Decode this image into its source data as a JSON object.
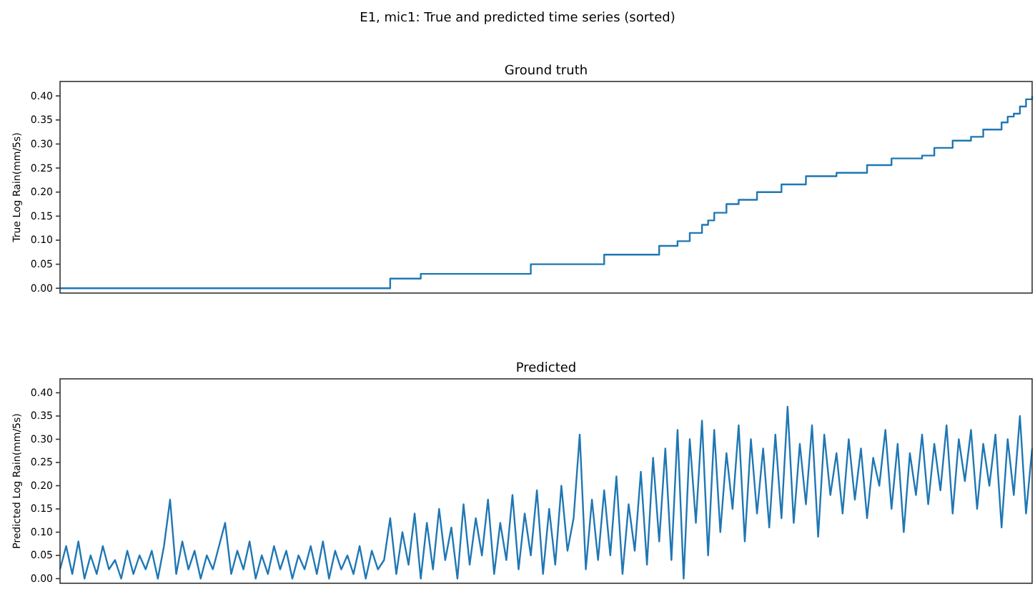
{
  "chart_data": [
    {
      "type": "step",
      "title": "Ground truth",
      "annotations": [
        "E1, mic1: True and predicted time series (sorted)"
      ],
      "ylabel": "True Log Rain(mm/5s)",
      "ylim": [
        -0.01,
        0.43
      ],
      "yticks": [
        {
          "value": 0,
          "label": "0.00"
        },
        {
          "value": 0.05,
          "label": "0.05"
        },
        {
          "value": 0.1,
          "label": "0.10"
        },
        {
          "value": 0.15,
          "label": "0.15"
        },
        {
          "value": 0.2,
          "label": "0.20"
        },
        {
          "value": 0.25,
          "label": "0.25"
        },
        {
          "value": 0.3,
          "label": "0.30"
        },
        {
          "value": 0.35,
          "label": "0.35"
        },
        {
          "value": 0.4,
          "label": "0.40"
        }
      ],
      "grid": false,
      "categories": [
        null,
        null,
        null,
        null,
        null,
        null,
        null,
        null,
        null,
        null,
        null,
        null,
        null,
        null,
        null,
        null,
        null,
        null,
        null,
        null,
        null,
        null,
        null,
        null,
        null,
        null,
        null,
        null,
        null,
        null,
        null,
        null,
        null,
        null,
        null,
        null,
        null,
        null,
        null,
        null,
        null,
        null,
        null,
        null,
        null,
        null,
        null,
        null,
        null,
        null,
        null,
        null,
        null,
        null,
        null,
        null,
        null,
        null,
        null,
        null,
        null,
        null,
        null,
        null,
        null,
        null,
        null,
        null,
        null,
        null,
        null,
        null,
        null,
        null,
        null,
        null,
        null,
        null,
        null,
        null,
        null,
        null,
        null,
        null,
        null,
        null,
        null,
        null,
        null,
        null,
        null,
        null,
        null,
        null,
        null,
        null,
        null,
        null,
        null,
        null,
        null,
        null,
        null,
        null,
        null,
        null,
        null,
        null,
        null,
        null,
        null,
        null,
        null,
        null,
        null,
        null,
        null,
        null,
        null,
        null,
        null,
        null,
        null,
        null,
        null,
        null,
        null,
        null,
        null,
        null,
        null,
        null,
        null,
        null,
        null,
        null,
        null,
        null,
        null,
        null,
        null,
        null,
        null,
        null,
        null,
        null,
        null,
        null,
        null,
        null,
        null,
        null,
        null,
        null,
        null,
        null,
        null,
        null,
        null,
        null
      ],
      "series": [
        {
          "color": "#1f77b4",
          "values": [
            0,
            0,
            0,
            0,
            0,
            0,
            0,
            0,
            0,
            0,
            0,
            0,
            0,
            0,
            0,
            0,
            0,
            0,
            0,
            0,
            0,
            0,
            0,
            0,
            0,
            0,
            0,
            0,
            0,
            0,
            0,
            0,
            0,
            0,
            0,
            0,
            0,
            0,
            0,
            0,
            0,
            0,
            0,
            0,
            0,
            0,
            0,
            0,
            0,
            0,
            0,
            0,
            0,
            0,
            0.02,
            0.02,
            0.02,
            0.02,
            0.02,
            0.03,
            0.03,
            0.03,
            0.03,
            0.03,
            0.03,
            0.03,
            0.03,
            0.03,
            0.03,
            0.03,
            0.03,
            0.03,
            0.03,
            0.03,
            0.03,
            0.03,
            0.03,
            0.05,
            0.05,
            0.05,
            0.05,
            0.05,
            0.05,
            0.05,
            0.05,
            0.05,
            0.05,
            0.05,
            0.05,
            0.07,
            0.07,
            0.07,
            0.07,
            0.07,
            0.07,
            0.07,
            0.07,
            0.07,
            0.088,
            0.088,
            0.088,
            0.098,
            0.098,
            0.115,
            0.115,
            0.132,
            0.141,
            0.157,
            0.157,
            0.175,
            0.175,
            0.184,
            0.184,
            0.184,
            0.2,
            0.2,
            0.2,
            0.2,
            0.216,
            0.216,
            0.216,
            0.216,
            0.233,
            0.233,
            0.233,
            0.233,
            0.233,
            0.24,
            0.24,
            0.24,
            0.24,
            0.24,
            0.256,
            0.256,
            0.256,
            0.256,
            0.27,
            0.27,
            0.27,
            0.27,
            0.27,
            0.276,
            0.276,
            0.292,
            0.292,
            0.292,
            0.307,
            0.307,
            0.307,
            0.315,
            0.315,
            0.33,
            0.33,
            0.33,
            0.345,
            0.357,
            0.363,
            0.378,
            0.393,
            0.4
          ]
        }
      ]
    },
    {
      "type": "line",
      "title": "Predicted",
      "ylabel": "Predicted Log Rain(mm/5s)",
      "ylim": [
        -0.01,
        0.43
      ],
      "yticks": [
        {
          "value": 0,
          "label": "0.00"
        },
        {
          "value": 0.05,
          "label": "0.05"
        },
        {
          "value": 0.1,
          "label": "0.10"
        },
        {
          "value": 0.15,
          "label": "0.15"
        },
        {
          "value": 0.2,
          "label": "0.20"
        },
        {
          "value": 0.25,
          "label": "0.25"
        },
        {
          "value": 0.3,
          "label": "0.30"
        },
        {
          "value": 0.35,
          "label": "0.35"
        },
        {
          "value": 0.4,
          "label": "0.40"
        }
      ],
      "grid": false,
      "categories": [
        null,
        null,
        null,
        null,
        null,
        null,
        null,
        null,
        null,
        null,
        null,
        null,
        null,
        null,
        null,
        null,
        null,
        null,
        null,
        null,
        null,
        null,
        null,
        null,
        null,
        null,
        null,
        null,
        null,
        null,
        null,
        null,
        null,
        null,
        null,
        null,
        null,
        null,
        null,
        null,
        null,
        null,
        null,
        null,
        null,
        null,
        null,
        null,
        null,
        null,
        null,
        null,
        null,
        null,
        null,
        null,
        null,
        null,
        null,
        null,
        null,
        null,
        null,
        null,
        null,
        null,
        null,
        null,
        null,
        null,
        null,
        null,
        null,
        null,
        null,
        null,
        null,
        null,
        null,
        null,
        null,
        null,
        null,
        null,
        null,
        null,
        null,
        null,
        null,
        null,
        null,
        null,
        null,
        null,
        null,
        null,
        null,
        null,
        null,
        null,
        null,
        null,
        null,
        null,
        null,
        null,
        null,
        null,
        null,
        null,
        null,
        null,
        null,
        null,
        null,
        null,
        null,
        null,
        null,
        null,
        null,
        null,
        null,
        null,
        null,
        null,
        null,
        null,
        null,
        null,
        null,
        null,
        null,
        null,
        null,
        null,
        null,
        null,
        null,
        null,
        null,
        null,
        null,
        null,
        null,
        null,
        null,
        null,
        null,
        null,
        null,
        null,
        null,
        null,
        null,
        null,
        null,
        null,
        null,
        null
      ],
      "series": [
        {
          "color": "#1f77b4",
          "values": [
            0.02,
            0.07,
            0.01,
            0.08,
            0.0,
            0.05,
            0.01,
            0.07,
            0.02,
            0.04,
            0.0,
            0.06,
            0.01,
            0.05,
            0.02,
            0.06,
            0.0,
            0.07,
            0.17,
            0.01,
            0.08,
            0.02,
            0.06,
            0.0,
            0.05,
            0.02,
            0.07,
            0.12,
            0.01,
            0.06,
            0.02,
            0.08,
            0.0,
            0.05,
            0.01,
            0.07,
            0.02,
            0.06,
            0.0,
            0.05,
            0.02,
            0.07,
            0.01,
            0.08,
            0.0,
            0.06,
            0.02,
            0.05,
            0.01,
            0.07,
            0.0,
            0.06,
            0.02,
            0.04,
            0.13,
            0.01,
            0.1,
            0.03,
            0.14,
            0.0,
            0.12,
            0.02,
            0.15,
            0.04,
            0.11,
            0.0,
            0.16,
            0.03,
            0.13,
            0.05,
            0.17,
            0.01,
            0.12,
            0.04,
            0.18,
            0.02,
            0.14,
            0.05,
            0.19,
            0.01,
            0.15,
            0.03,
            0.2,
            0.06,
            0.13,
            0.31,
            0.02,
            0.17,
            0.04,
            0.19,
            0.05,
            0.22,
            0.01,
            0.16,
            0.06,
            0.23,
            0.03,
            0.26,
            0.08,
            0.28,
            0.04,
            0.32,
            0.0,
            0.3,
            0.12,
            0.34,
            0.05,
            0.32,
            0.1,
            0.27,
            0.15,
            0.33,
            0.08,
            0.3,
            0.14,
            0.28,
            0.11,
            0.31,
            0.13,
            0.37,
            0.12,
            0.29,
            0.16,
            0.33,
            0.09,
            0.31,
            0.18,
            0.27,
            0.14,
            0.3,
            0.17,
            0.28,
            0.13,
            0.26,
            0.2,
            0.32,
            0.15,
            0.29,
            0.1,
            0.27,
            0.18,
            0.31,
            0.16,
            0.29,
            0.19,
            0.33,
            0.14,
            0.3,
            0.21,
            0.32,
            0.15,
            0.29,
            0.2,
            0.31,
            0.11,
            0.3,
            0.18,
            0.35,
            0.14,
            0.28
          ]
        }
      ]
    }
  ]
}
